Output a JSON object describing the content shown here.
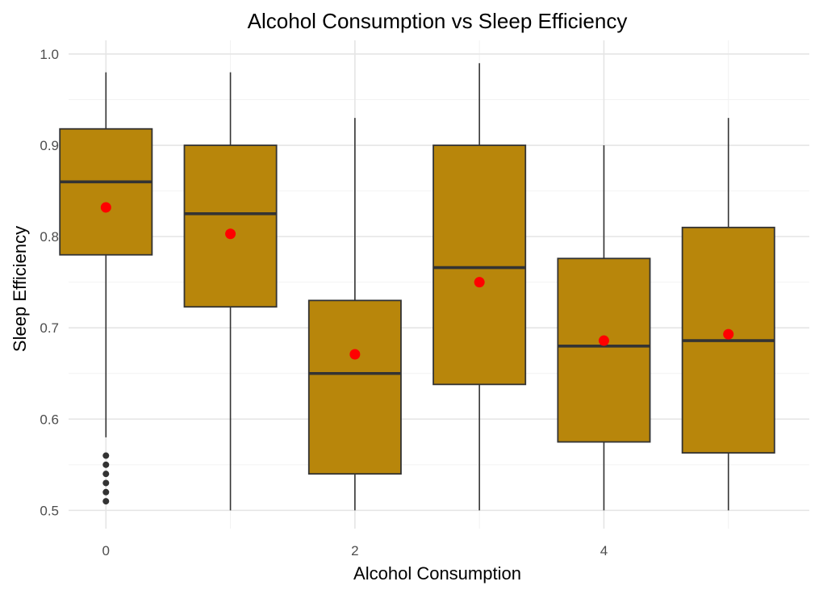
{
  "chart_data": {
    "type": "boxplot",
    "title": "Alcohol Consumption vs Sleep Efficiency",
    "xlabel": "Alcohol Consumption",
    "ylabel": "Sleep Efficiency",
    "xlim": [
      -0.3,
      5.65
    ],
    "ylim": [
      0.48,
      1.015
    ],
    "x_ticks": [
      0,
      2,
      4
    ],
    "x_tick_labels": [
      "0",
      "2",
      "4"
    ],
    "y_ticks": [
      0.5,
      0.6,
      0.7,
      0.8,
      0.9,
      1.0
    ],
    "y_tick_labels": [
      "0.5",
      "0.6",
      "0.7",
      "0.8",
      "0.9",
      "1.0"
    ],
    "grid": true,
    "box_color": "#B8860B",
    "mean_color": "#FF0000",
    "groups": [
      {
        "x": 0,
        "whisker_low": 0.58,
        "q1": 0.78,
        "median": 0.86,
        "q3": 0.918,
        "whisker_high": 0.98,
        "mean": 0.832,
        "outliers": [
          0.51,
          0.52,
          0.53,
          0.54,
          0.55,
          0.56
        ]
      },
      {
        "x": 1,
        "whisker_low": 0.5,
        "q1": 0.723,
        "median": 0.825,
        "q3": 0.9,
        "whisker_high": 0.98,
        "mean": 0.803,
        "outliers": []
      },
      {
        "x": 2,
        "whisker_low": 0.5,
        "q1": 0.54,
        "median": 0.65,
        "q3": 0.73,
        "whisker_high": 0.93,
        "mean": 0.671,
        "outliers": []
      },
      {
        "x": 3,
        "whisker_low": 0.5,
        "q1": 0.638,
        "median": 0.766,
        "q3": 0.9,
        "whisker_high": 0.99,
        "mean": 0.75,
        "outliers": []
      },
      {
        "x": 4,
        "whisker_low": 0.5,
        "q1": 0.575,
        "median": 0.68,
        "q3": 0.776,
        "whisker_high": 0.9,
        "mean": 0.686,
        "outliers": []
      },
      {
        "x": 5,
        "whisker_low": 0.5,
        "q1": 0.563,
        "median": 0.686,
        "q3": 0.81,
        "whisker_high": 0.93,
        "mean": 0.693,
        "outliers": []
      }
    ]
  }
}
